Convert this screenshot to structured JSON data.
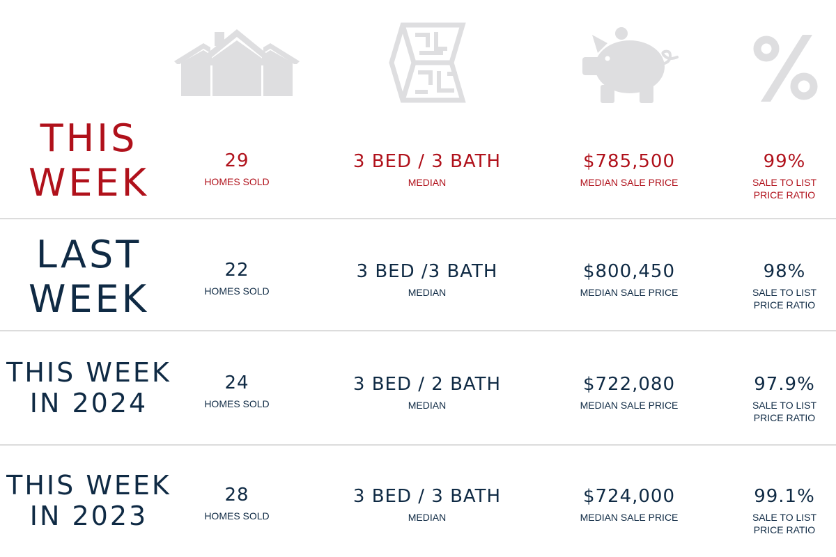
{
  "colors": {
    "accent": "#b0111b",
    "primary": "#0f2a44",
    "icon_gray": "#dedee0",
    "divider": "#dcdcdc"
  },
  "icons": [
    "house-icon",
    "floor-plan-icon",
    "piggy-bank-icon",
    "percent-icon"
  ],
  "rows": [
    {
      "period": [
        "THIS",
        "WEEK"
      ],
      "sold": "29",
      "sold_label": "HOMES SOLD",
      "beds": "3 BED / 3 BATH",
      "beds_label": "MEDIAN",
      "price": "$785,500",
      "price_label": "MEDIAN SALE PRICE",
      "ratio": "99%",
      "ratio_label": [
        "SALE TO LIST",
        "PRICE RATIO"
      ]
    },
    {
      "period": [
        "LAST",
        "WEEK"
      ],
      "sold": "22",
      "sold_label": "HOMES SOLD",
      "beds": "3 BED /3 BATH",
      "beds_label": "MEDIAN",
      "price": "$800,450",
      "price_label": "MEDIAN SALE PRICE",
      "ratio": "98%",
      "ratio_label": [
        "SALE TO LIST",
        "PRICE RATIO"
      ]
    },
    {
      "period": [
        "THIS WEEK",
        "IN 2024"
      ],
      "sold": "24",
      "sold_label": "HOMES SOLD",
      "beds": "3 BED / 2 BATH",
      "beds_label": "MEDIAN",
      "price": "$722,080",
      "price_label": "MEDIAN SALE PRICE",
      "ratio": "97.9%",
      "ratio_label": [
        "SALE TO LIST",
        "PRICE RATIO"
      ]
    },
    {
      "period": [
        "THIS WEEK",
        "IN 2023"
      ],
      "sold": "28",
      "sold_label": "HOMES SOLD",
      "beds": "3 BED / 3 BATH",
      "beds_label": "MEDIAN",
      "price": "$724,000",
      "price_label": "MEDIAN SALE PRICE",
      "ratio": "99.1%",
      "ratio_label": [
        "SALE TO LIST",
        "PRICE RATIO"
      ]
    }
  ]
}
